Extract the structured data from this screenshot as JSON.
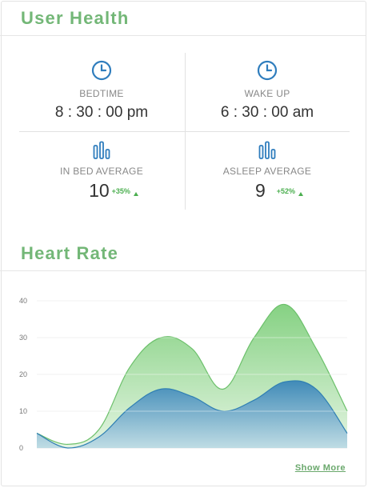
{
  "user_health": {
    "title": "User Health",
    "bedtime": {
      "label": "BEDTIME",
      "value": "8 : 30 : 00 pm"
    },
    "wake_up": {
      "label": "WAKE UP",
      "value": "6 : 30 : 00 am"
    },
    "in_bed_average": {
      "label": "IN BED AVERAGE",
      "value": "10",
      "change": "+35%"
    },
    "asleep_average": {
      "label": "ASLEEP AVERAGE",
      "value": "9",
      "change": "+52%"
    }
  },
  "heart_rate": {
    "title": "Heart Rate",
    "show_more": "Show More"
  },
  "colors": {
    "title_green": "#73b777",
    "icon_blue": "#2f7dbd",
    "up_green": "#4caf50",
    "green_series": "#6cc06b",
    "blue_series": "#2f7fb3"
  },
  "chart_data": {
    "type": "area",
    "x": [
      0,
      1,
      2,
      3,
      4,
      5,
      6,
      7,
      8,
      9,
      10
    ],
    "series": [
      {
        "values": [
          4,
          1,
          5,
          22,
          30,
          27,
          16,
          30,
          39,
          27,
          10
        ]
      },
      {
        "values": [
          4,
          0,
          3,
          11,
          16,
          14,
          10,
          13,
          18,
          16,
          4
        ]
      }
    ],
    "yticks": [
      0,
      10,
      20,
      30,
      40
    ],
    "ylim": [
      0,
      42
    ],
    "xlabel": "",
    "ylabel": "",
    "grid": true
  }
}
